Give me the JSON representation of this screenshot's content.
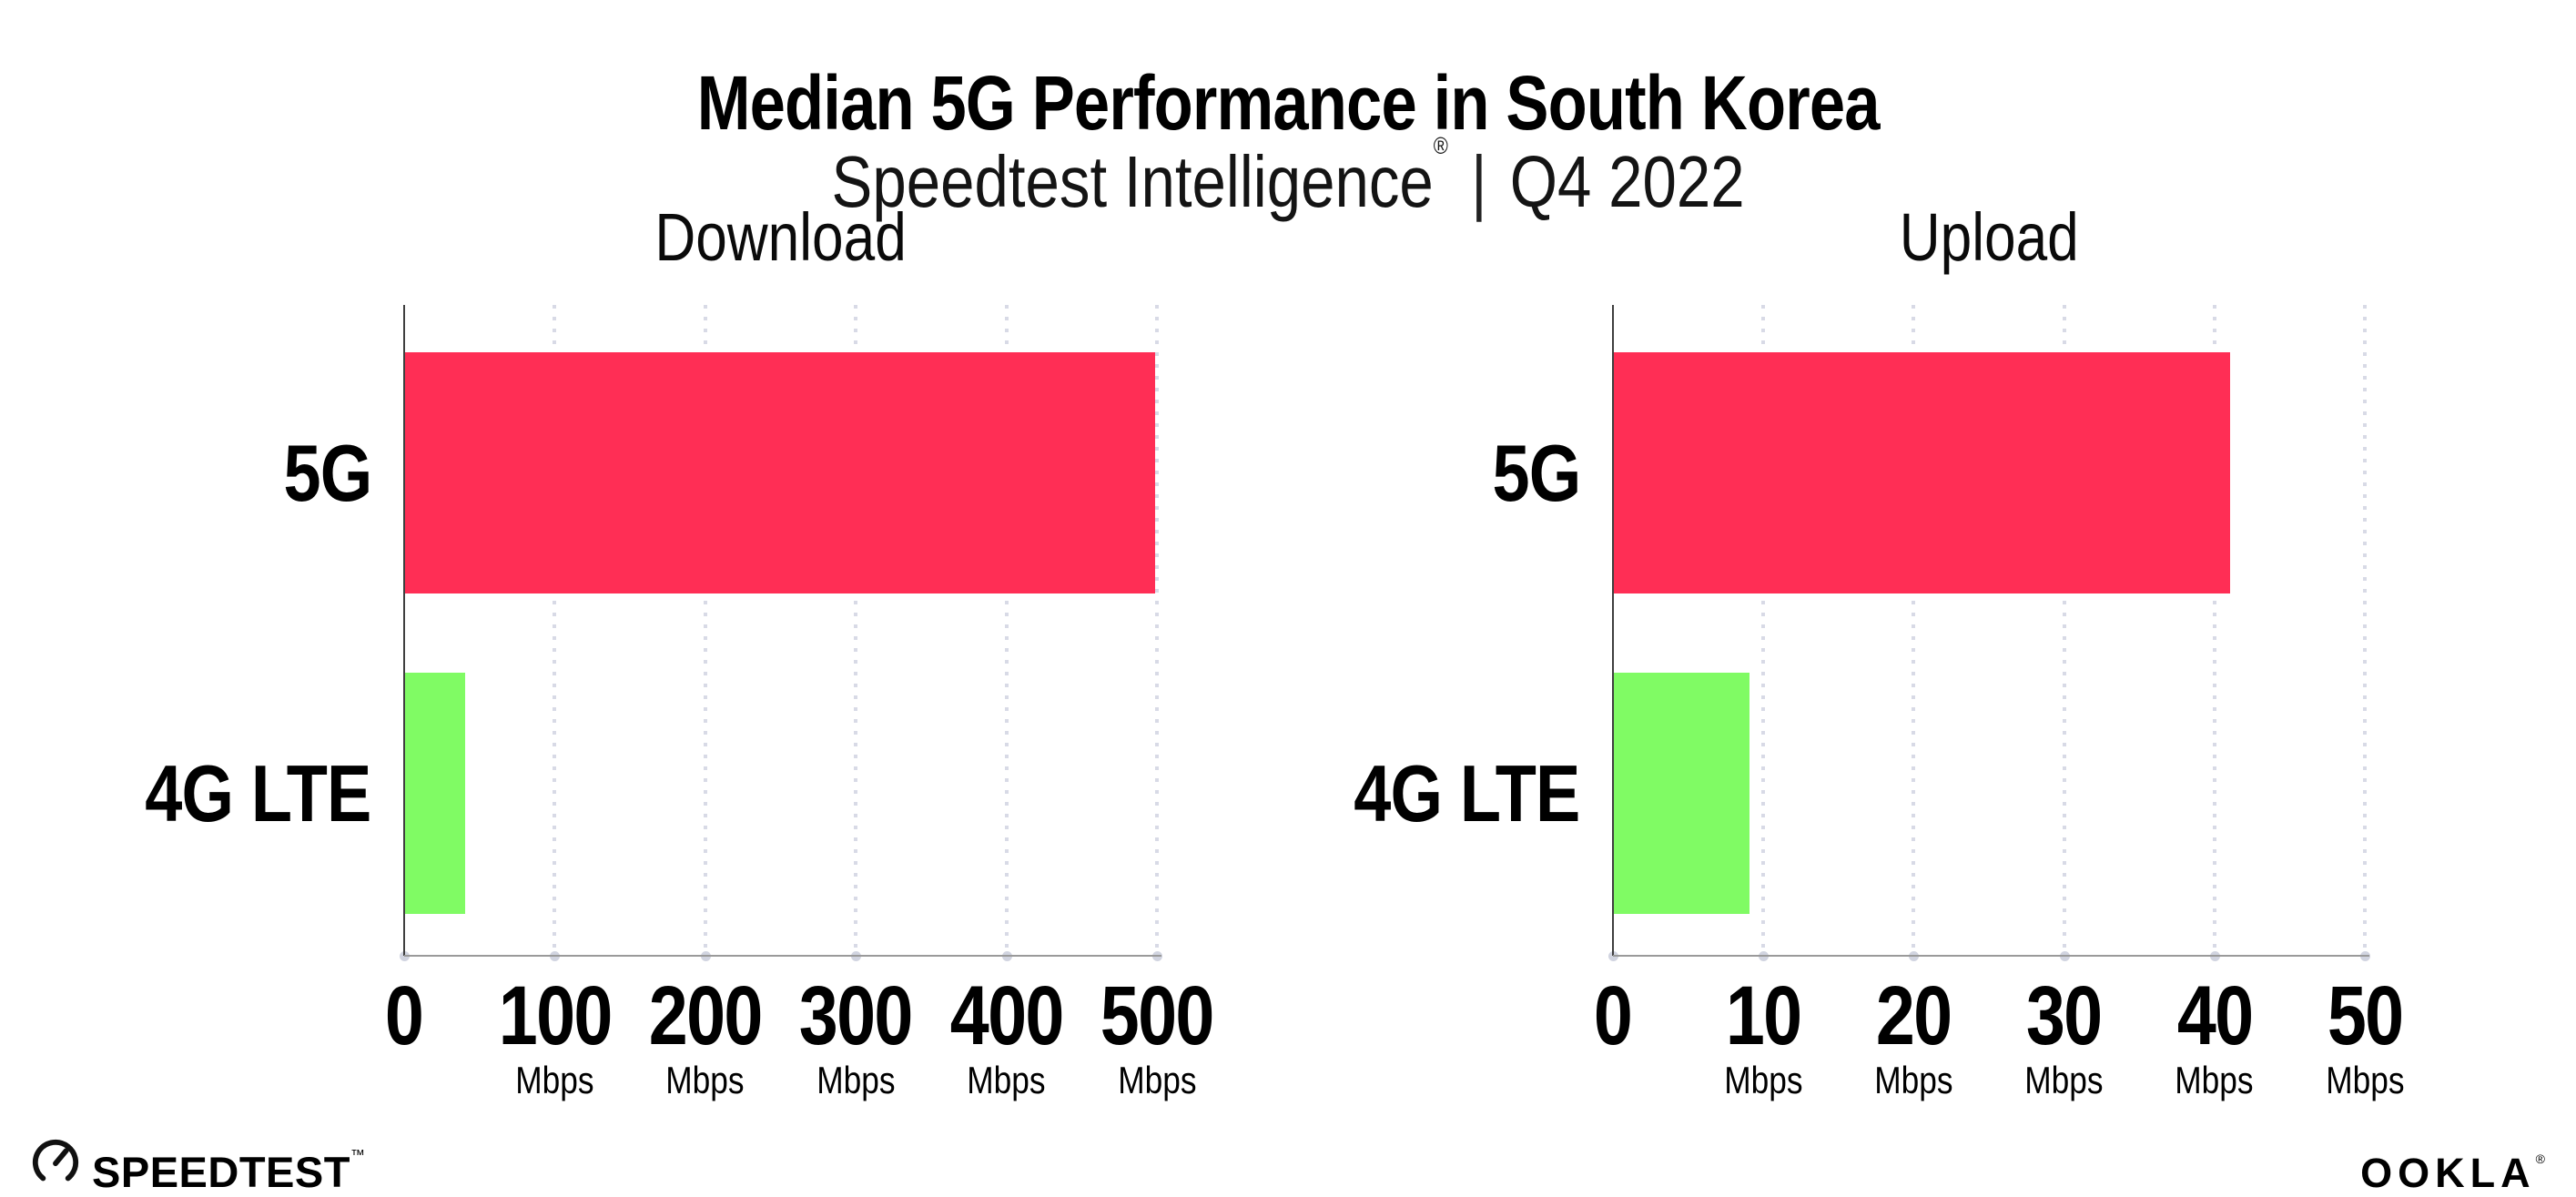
{
  "header": {
    "title": "Median 5G Performance in South Korea",
    "subtitle_brand": "Speedtest Intelligence",
    "subtitle_reg": "®",
    "subtitle_separator": "|",
    "subtitle_period": "Q4 2022"
  },
  "footer": {
    "speedtest_logo_text": "SPEEDTEST",
    "speedtest_trademark": "™",
    "ookla_logo_text": "OOKLA",
    "ookla_reg": "®"
  },
  "colors": {
    "bar_5g": "#FF2E55",
    "bar_4g_lte": "#80FB64",
    "y_axis": "#3f3f3f",
    "x_axis": "#9a9a9a",
    "gridline_dot": "#d8dae6",
    "axis_tick_dot": "#c9cdda",
    "text": "#000000",
    "background": "#ffffff"
  },
  "chart_data": [
    {
      "type": "bar",
      "orientation": "horizontal",
      "title": "Download",
      "categories": [
        "5G",
        "4G LTE"
      ],
      "values": [
        498,
        40
      ],
      "unit": "Mbps",
      "xlim": [
        0,
        500
      ],
      "xticks": [
        0,
        100,
        200,
        300,
        400,
        500
      ],
      "bar_colors": [
        "#FF2E55",
        "#80FB64"
      ],
      "grid": "dotted-vertical",
      "legend": "none",
      "xlabel": "",
      "ylabel": ""
    },
    {
      "type": "bar",
      "orientation": "horizontal",
      "title": "Upload",
      "categories": [
        "5G",
        "4G LTE"
      ],
      "values": [
        41,
        9
      ],
      "unit": "Mbps",
      "xlim": [
        0,
        50
      ],
      "xticks": [
        0,
        10,
        20,
        30,
        40,
        50
      ],
      "bar_colors": [
        "#FF2E55",
        "#80FB64"
      ],
      "grid": "dotted-vertical",
      "legend": "none",
      "xlabel": "",
      "ylabel": ""
    }
  ]
}
